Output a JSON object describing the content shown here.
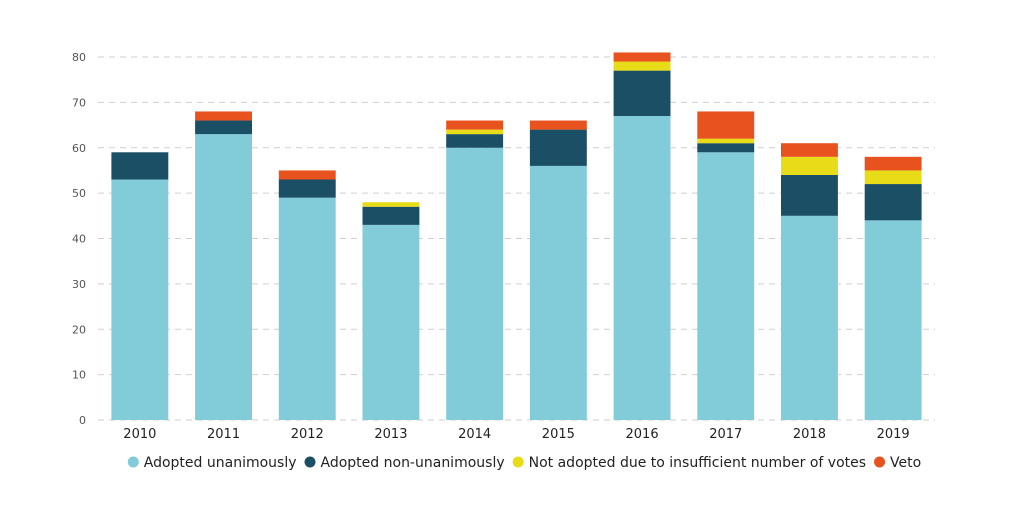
{
  "chart_data": {
    "type": "bar",
    "stacked": true,
    "title": "",
    "xlabel": "",
    "ylabel": "",
    "ylim": [
      0,
      80
    ],
    "yticks": [
      0,
      10,
      20,
      30,
      40,
      50,
      60,
      70,
      80
    ],
    "grid": true,
    "legend_position": "bottom",
    "categories": [
      "2010",
      "2011",
      "2012",
      "2013",
      "2014",
      "2015",
      "2016",
      "2017",
      "2018",
      "2019"
    ],
    "series": [
      {
        "name": "Adopted unanimously",
        "color": "#82ccd9",
        "values": [
          53,
          63,
          49,
          43,
          60,
          56,
          67,
          59,
          45,
          44
        ]
      },
      {
        "name": "Adopted non-unanimously",
        "color": "#1b4f66",
        "values": [
          6,
          3,
          4,
          4,
          3,
          8,
          10,
          2,
          9,
          8
        ]
      },
      {
        "name": "Not adopted due to insufficient number of votes",
        "color": "#e8dc18",
        "values": [
          0,
          0,
          0,
          1,
          1,
          0,
          2,
          1,
          4,
          3
        ]
      },
      {
        "name": "Veto",
        "color": "#e8521e",
        "values": [
          0,
          2,
          2,
          0,
          2,
          2,
          2,
          6,
          3,
          3
        ]
      }
    ]
  }
}
